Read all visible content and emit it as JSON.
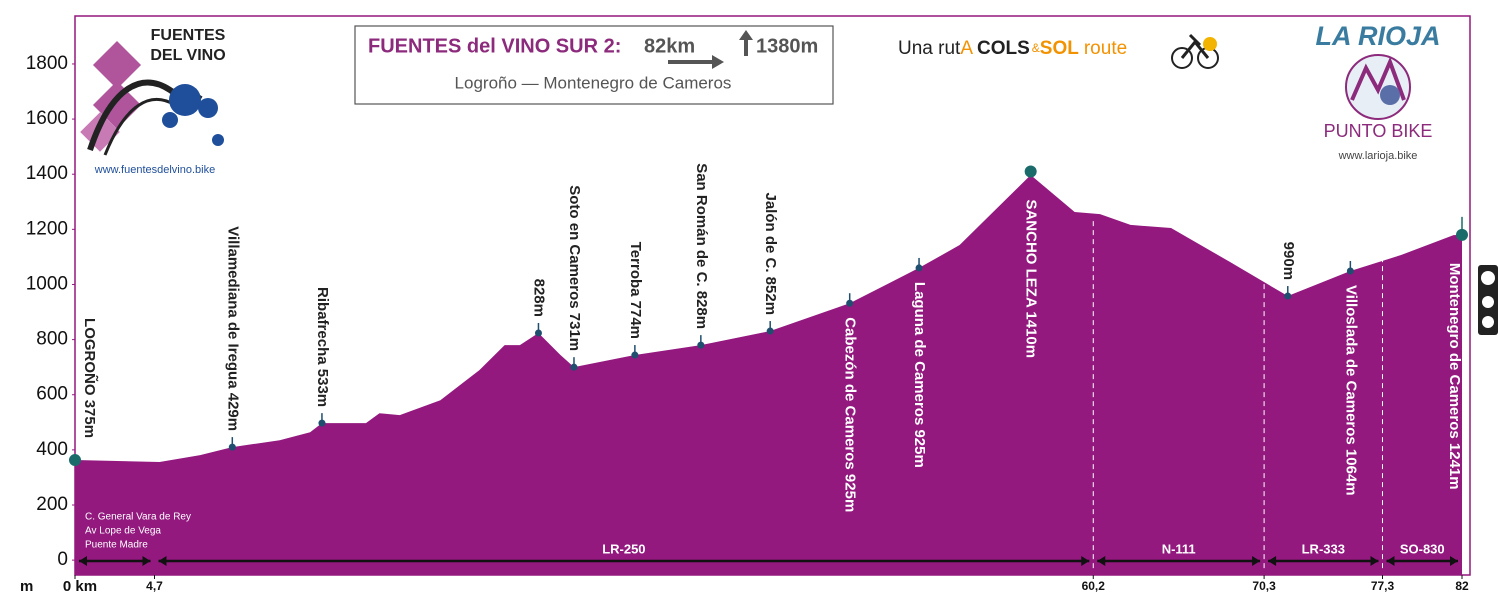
{
  "chart_data": {
    "type": "area",
    "color": "#93197f",
    "title": "FUENTES del VINO SUR  2:",
    "distance": "82km",
    "ascent": "1380m",
    "subtitle": "Logroño — Montenegro de Cameros",
    "y_unit": "m",
    "x": [
      0,
      5.0,
      7.4,
      9.3,
      12.1,
      13.9,
      14.6,
      17.2,
      18.0,
      19.2,
      21.6,
      23.9,
      25.4,
      26.3,
      27.4,
      28.7,
      29.5,
      33.1,
      37.0,
      41.1,
      45.8,
      49.9,
      52.3,
      56.5,
      59.1,
      60.6,
      62.4,
      64.8,
      68.3,
      71.7,
      75.4,
      78.4,
      81.5,
      82
    ],
    "values": [
      363,
      356,
      381,
      410,
      435,
      464,
      497,
      497,
      533,
      526,
      580,
      689,
      780,
      780,
      824,
      744,
      700,
      744,
      780,
      831,
      932,
      1060,
      1143,
      1397,
      1263,
      1255,
      1216,
      1205,
      1081,
      958,
      1049,
      1107,
      1179,
      1180
    ],
    "xlim": [
      0,
      82
    ],
    "ylim": [
      -54,
      1974
    ],
    "yticks": [
      0,
      200,
      400,
      600,
      800,
      1000,
      1200,
      1400,
      1600,
      1800
    ],
    "xticks": [
      {
        "value": 0,
        "label": "0 km"
      },
      {
        "value": 4.7,
        "label": "4,7"
      },
      {
        "value": 60.2,
        "label": "60,2"
      },
      {
        "value": 70.3,
        "label": "70,3"
      },
      {
        "value": 77.3,
        "label": "77,3"
      },
      82
    ],
    "roads": [
      {
        "from": 0,
        "to": 4.7
      },
      {
        "name": "LR-250",
        "from": 4.7,
        "to": 60.2
      },
      {
        "name": "N-111",
        "from": 60.2,
        "to": 70.3
      },
      {
        "name": "LR-333",
        "from": 70.3,
        "to": 77.3
      },
      {
        "name": "SO-830",
        "from": 77.3,
        "to": 82
      }
    ],
    "markers": [
      {
        "label": "LOGROÑO 375m",
        "km": 0,
        "elevation": 363,
        "position": "above",
        "major": true
      },
      {
        "label": "Villamediana de Iregua 429m",
        "km": 9.3,
        "elevation": 410,
        "position": "above"
      },
      {
        "label": "Ribafrecha 533m",
        "km": 14.6,
        "elevation": 497,
        "position": "above"
      },
      {
        "label": "828m",
        "km": 27.4,
        "elevation": 824,
        "position": "above"
      },
      {
        "label": "Soto en Cameros 731m",
        "km": 29.5,
        "elevation": 700,
        "position": "above"
      },
      {
        "label": "Terroba 774m",
        "km": 33.1,
        "elevation": 744,
        "position": "above"
      },
      {
        "label": "San Román de C. 828m",
        "km": 37.0,
        "elevation": 780,
        "position": "above"
      },
      {
        "label": "Jalón de C. 852m",
        "km": 41.1,
        "elevation": 831,
        "position": "above"
      },
      {
        "label": "Cabezón de Cameros 925m",
        "km": 45.8,
        "elevation": 932,
        "position": "below"
      },
      {
        "label": "Laguna de Cameros 925m",
        "km": 49.9,
        "elevation": 1060,
        "position": "below"
      },
      {
        "label": "SANCHO LEZA 1410m",
        "km": 56.5,
        "elevation": 1410,
        "position": "below",
        "major": true
      },
      {
        "label": "990m",
        "km": 71.7,
        "elevation": 958,
        "position": "above"
      },
      {
        "label": "Villoslada de Cameros 1064m",
        "km": 75.4,
        "elevation": 1049,
        "position": "below"
      },
      {
        "label": "Montenegro de Cameros 1241m",
        "km": 82,
        "elevation": 1180,
        "position": "below",
        "major": true
      }
    ],
    "notes": [
      "C. General Vara de Rey",
      "Av Lope de Vega",
      "Puente Madre"
    ]
  },
  "logo_left": {
    "line1": "FUENTES",
    "line2": "DEL VINO",
    "url": "www.fuentesdelvino.bike"
  },
  "brand": [
    "Una rut",
    "A",
    "COLS",
    "&",
    "SOL",
    "route"
  ],
  "logo_right": {
    "region": "LA RIOJA",
    "name": "PUNTO BIKE",
    "url": "www.larioja.bike"
  }
}
